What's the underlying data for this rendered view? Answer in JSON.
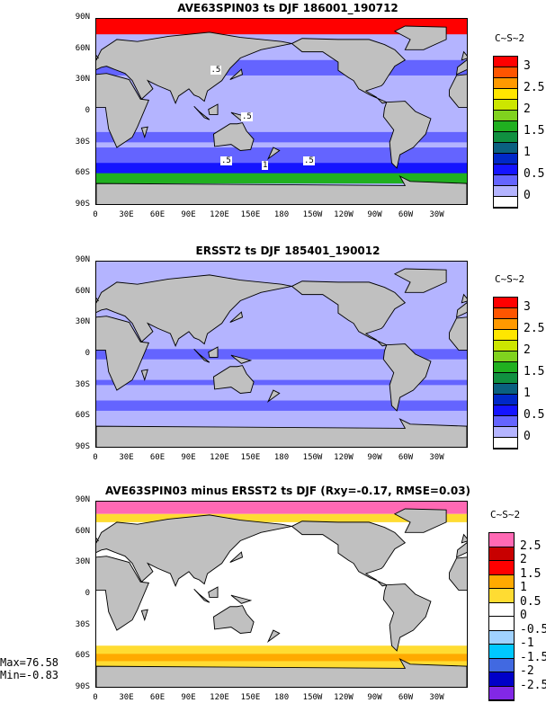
{
  "panels": [
    {
      "title": "AVE63SPIN03 ts DJF 186001_190712",
      "units": "C~S~2",
      "contour_labels": [
        ".5",
        ".5",
        ".5",
        "1",
        ".5"
      ],
      "colorbar": {
        "colors": [
          "#ff0000",
          "#ff5500",
          "#ff9900",
          "#ffe600",
          "#cce600",
          "#80d21e",
          "#20b020",
          "#109040",
          "#0a6080",
          "#0028c8",
          "#1414ff",
          "#6464ff",
          "#b4b4ff",
          "#ffffff"
        ],
        "labels": [
          "3",
          "2.5",
          "2",
          "1.5",
          "1",
          "0.5",
          "0"
        ]
      }
    },
    {
      "title": "ERSST2 ts DJF 185401_190012",
      "units": "C~S~2",
      "colorbar": {
        "colors": [
          "#ff0000",
          "#ff5500",
          "#ff9900",
          "#ffe600",
          "#cce600",
          "#80d21e",
          "#20b020",
          "#109040",
          "#0a6080",
          "#0028c8",
          "#1414ff",
          "#6464ff",
          "#b4b4ff",
          "#ffffff"
        ],
        "labels": [
          "3",
          "2.5",
          "2",
          "1.5",
          "1",
          "0.5",
          "0"
        ]
      }
    },
    {
      "title": "AVE63SPIN03 minus ERSST2 ts DJF (Rxy=-0.17, RMSE=0.03)",
      "units": "C~S~2",
      "colorbar": {
        "colors": [
          "#ff69b4",
          "#c80000",
          "#ff0000",
          "#ffaa00",
          "#ffdc32",
          "#ffffff",
          "#ffffff",
          "#a0d2ff",
          "#00c8ff",
          "#4169e1",
          "#0000c8",
          "#8228e6"
        ],
        "labels": [
          "2.5",
          "2",
          "1.5",
          "1",
          "0.5",
          "0",
          "-0.5",
          "-1",
          "-1.5",
          "-2",
          "-2.5"
        ]
      }
    }
  ],
  "lat_ticks": [
    "90N",
    "60N",
    "30N",
    "0",
    "30S",
    "60S",
    "90S"
  ],
  "lon_ticks": [
    "0",
    "30E",
    "60E",
    "90E",
    "120E",
    "150E",
    "180",
    "150W",
    "120W",
    "90W",
    "60W",
    "30W"
  ],
  "stats": {
    "max": "Max=76.58",
    "min": "Min=-0.83"
  }
}
